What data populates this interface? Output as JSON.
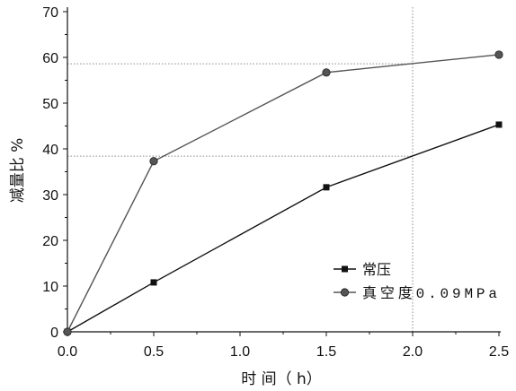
{
  "chart_data": {
    "type": "line",
    "xlabel": "时 间（ h）",
    "ylabel": "减量比 %",
    "xlim": [
      0,
      2.5
    ],
    "ylim": [
      0,
      70
    ],
    "xticks": [
      0,
      0.5,
      1.0,
      1.5,
      2.0,
      2.5
    ],
    "xtick_labels": [
      "0.0",
      "0.5",
      "1.0",
      "1.5",
      "2.0",
      "2.5"
    ],
    "yticks": [
      0,
      10,
      20,
      30,
      40,
      50,
      60,
      70
    ],
    "ytick_labels": [
      "0",
      "10",
      "20",
      "30",
      "40",
      "50",
      "60",
      "70"
    ],
    "minor_tick_step": {
      "x": 0.25,
      "y": 5
    },
    "grid": false,
    "legend": {
      "position": "bottom-right"
    },
    "series": [
      {
        "name": "常压",
        "marker": "square",
        "color": "#111111",
        "x": [
          0,
          0.5,
          1.5,
          2.5
        ],
        "values": [
          0,
          10.8,
          31.6,
          45.3
        ]
      },
      {
        "name": "真空度0.09MPa",
        "marker": "circle",
        "color": "#555555",
        "x": [
          0,
          0.5,
          1.5,
          2.5
        ],
        "values": [
          0,
          37.3,
          56.7,
          60.6
        ]
      }
    ],
    "reference_lines": {
      "vertical_at_x": 2.0,
      "horizontal_at_y": [
        58.6,
        38.4
      ]
    }
  }
}
